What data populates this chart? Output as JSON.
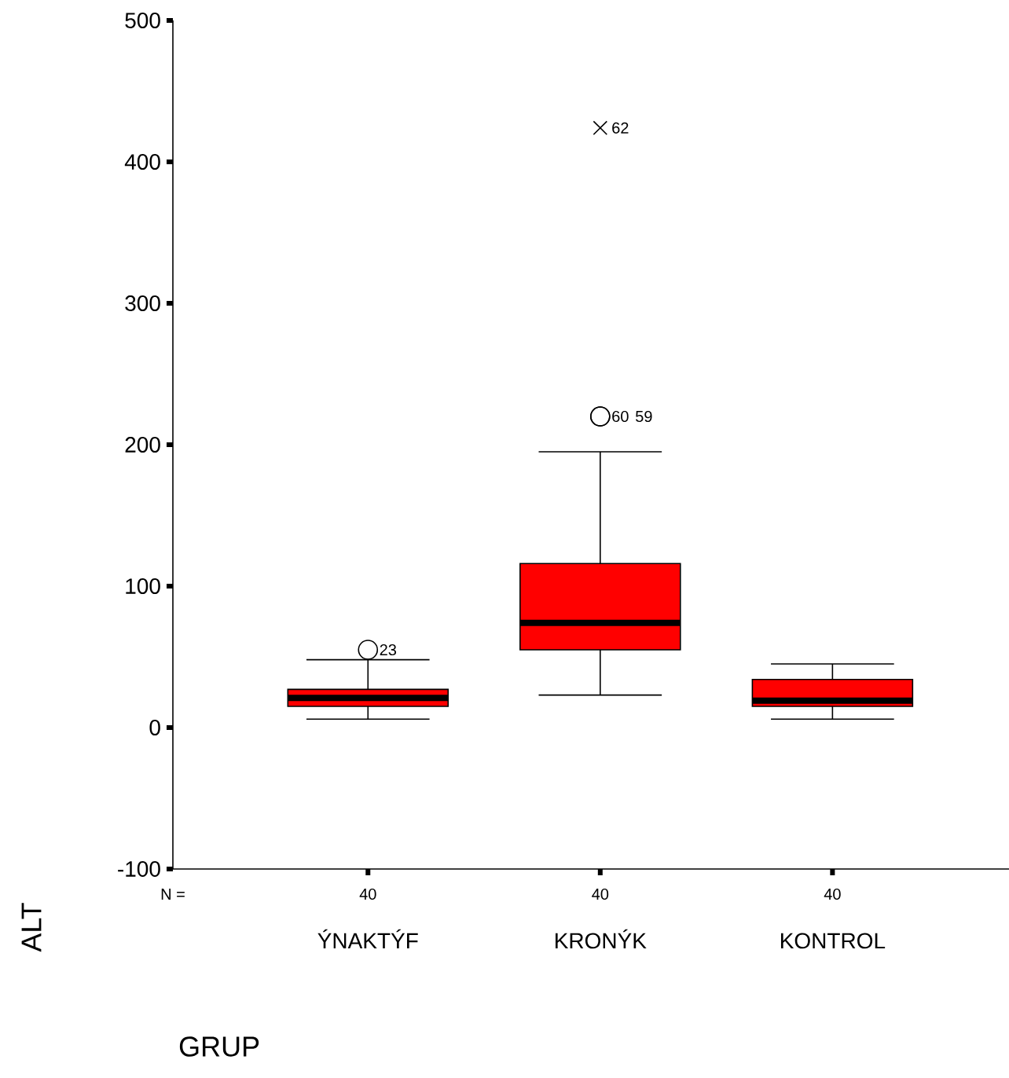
{
  "chart_data": {
    "type": "box",
    "xlabel": "GRUP",
    "ylabel": "ALT",
    "categories": [
      "ÝNAKTÝF",
      "KRONÝK",
      "KONTROL"
    ],
    "boxes": [
      {
        "low": 6,
        "q1": 15,
        "median": 21,
        "q3": 27,
        "high": 48,
        "outliers": [
          55
        ]
      },
      {
        "low": 23,
        "q1": 55,
        "median": 74,
        "q3": 116,
        "high": 195,
        "outliers": [
          220,
          220,
          424
        ]
      },
      {
        "low": 6,
        "q1": 15,
        "median": 19,
        "q3": 34,
        "high": 45
      }
    ],
    "color": "#ff0000",
    "ylim": [
      -100,
      500
    ],
    "yticks": [
      -100,
      0,
      100,
      200,
      300,
      400,
      500
    ],
    "annotations": [
      "N =",
      "40",
      "40",
      "40",
      "23",
      "60",
      "59",
      "62"
    ]
  }
}
